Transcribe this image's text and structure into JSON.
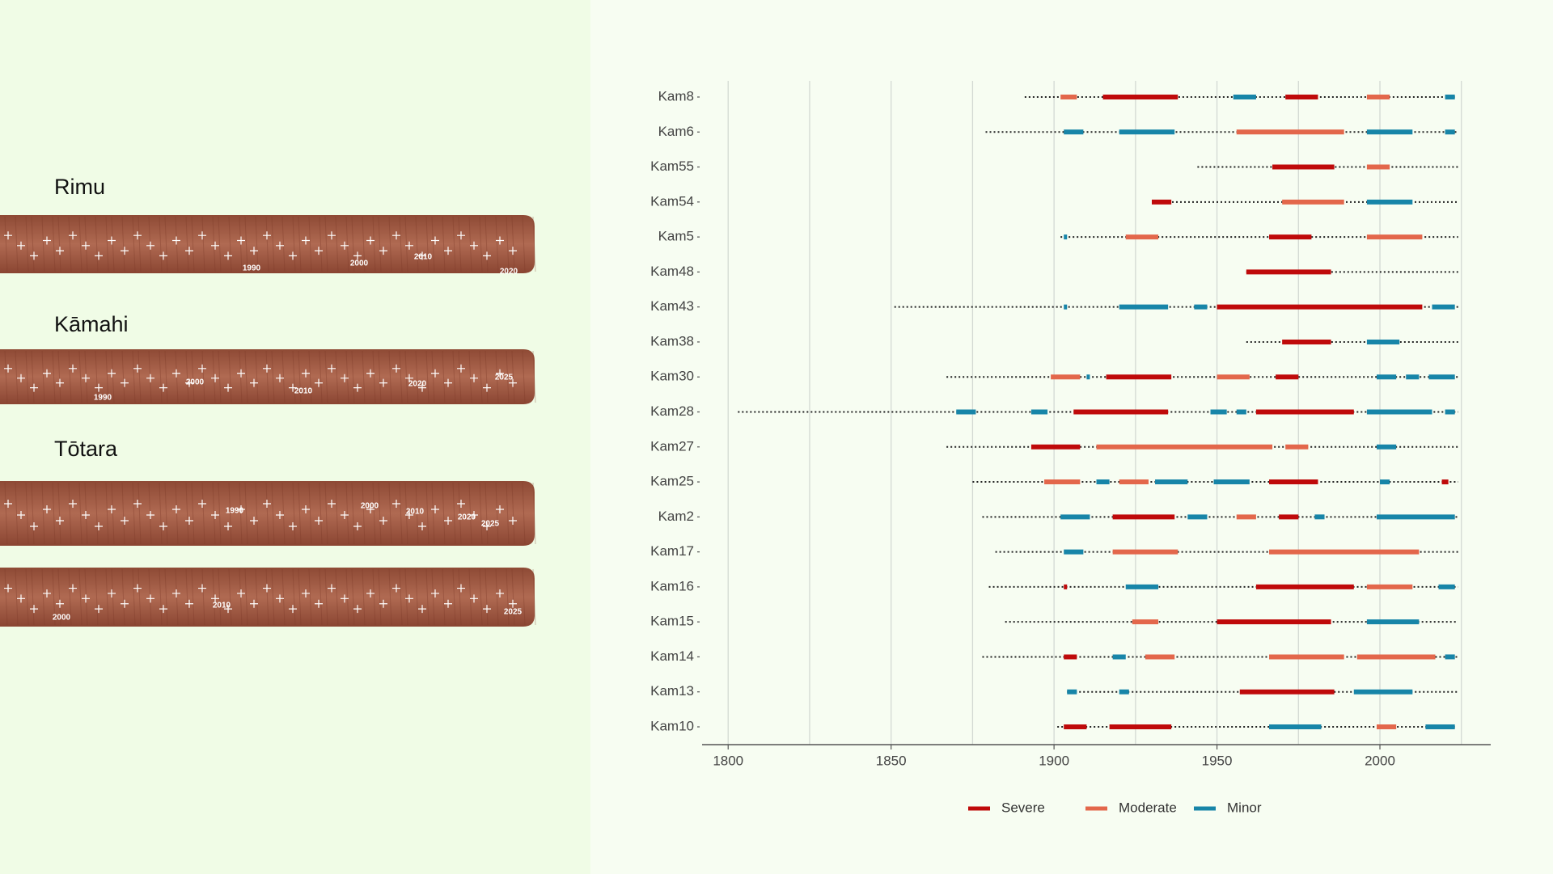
{
  "cores": [
    {
      "title": "Rimu",
      "labels": [
        "1990",
        "2000",
        "2010",
        "2020"
      ]
    },
    {
      "title": "Kāmahi",
      "labels": [
        "1990",
        "2000",
        "2010",
        "2020",
        "2025"
      ]
    },
    {
      "title": "Tōtara",
      "labels": [
        "1990",
        "2000",
        "2010",
        "2020",
        "2025"
      ]
    },
    {
      "labels": [
        "2000",
        "2010",
        "2025"
      ]
    }
  ],
  "chart_data": {
    "type": "timeline",
    "series": [
      {
        "name": "Severe",
        "color": "#bf0a0a"
      },
      {
        "name": "Moderate",
        "color": "#e3674b"
      },
      {
        "name": "Minor",
        "color": "#1785a8"
      }
    ],
    "xlim": [
      1792,
      2034
    ],
    "xticks": [
      1800,
      1850,
      1900,
      1950,
      2000
    ],
    "xgrid": [
      1800,
      1825,
      1850,
      1875,
      1900,
      1925,
      1950,
      1975,
      2000,
      2025
    ],
    "rows": [
      {
        "name": "Kam8",
        "start": 1891,
        "end": 2023,
        "segments": [
          {
            "level": "Moderate",
            "start": 1902,
            "end": 1907
          },
          {
            "level": "Severe",
            "start": 1915,
            "end": 1938
          },
          {
            "level": "Minor",
            "start": 1955,
            "end": 1962
          },
          {
            "level": "Severe",
            "start": 1971,
            "end": 1981
          },
          {
            "level": "Moderate",
            "start": 1996,
            "end": 2003
          },
          {
            "level": "Minor",
            "start": 2020,
            "end": 2023
          }
        ]
      },
      {
        "name": "Kam6",
        "start": 1879,
        "end": 2024,
        "segments": [
          {
            "level": "Minor",
            "start": 1903,
            "end": 1909
          },
          {
            "level": "Minor",
            "start": 1920,
            "end": 1937
          },
          {
            "level": "Moderate",
            "start": 1956,
            "end": 1989
          },
          {
            "level": "Minor",
            "start": 1996,
            "end": 2010
          },
          {
            "level": "Minor",
            "start": 2020,
            "end": 2023
          }
        ]
      },
      {
        "name": "Kam55",
        "start": 1944,
        "end": 2024,
        "segments": [
          {
            "level": "Severe",
            "start": 1967,
            "end": 1986
          },
          {
            "level": "Moderate",
            "start": 1996,
            "end": 2003
          }
        ]
      },
      {
        "name": "Kam54",
        "start": 1930,
        "end": 2024,
        "segments": [
          {
            "level": "Severe",
            "start": 1930,
            "end": 1936
          },
          {
            "level": "Moderate",
            "start": 1970,
            "end": 1989
          },
          {
            "level": "Minor",
            "start": 1996,
            "end": 2010
          }
        ]
      },
      {
        "name": "Kam5",
        "start": 1902,
        "end": 2024,
        "segments": [
          {
            "level": "Minor",
            "start": 1903,
            "end": 1904
          },
          {
            "level": "Moderate",
            "start": 1922,
            "end": 1932
          },
          {
            "level": "Severe",
            "start": 1966,
            "end": 1979
          },
          {
            "level": "Moderate",
            "start": 1996,
            "end": 2013
          }
        ]
      },
      {
        "name": "Kam48",
        "start": 1959,
        "end": 2024,
        "segments": [
          {
            "level": "Severe",
            "start": 1959,
            "end": 1985
          }
        ]
      },
      {
        "name": "Kam43",
        "start": 1851,
        "end": 2024,
        "segments": [
          {
            "level": "Minor",
            "start": 1903,
            "end": 1904
          },
          {
            "level": "Minor",
            "start": 1920,
            "end": 1935
          },
          {
            "level": "Minor",
            "start": 1943,
            "end": 1947
          },
          {
            "level": "Severe",
            "start": 1950,
            "end": 2013
          },
          {
            "level": "Minor",
            "start": 2016,
            "end": 2023
          }
        ]
      },
      {
        "name": "Kam38",
        "start": 1959,
        "end": 2024,
        "segments": [
          {
            "level": "Severe",
            "start": 1970,
            "end": 1985
          },
          {
            "level": "Minor",
            "start": 1996,
            "end": 2006
          }
        ]
      },
      {
        "name": "Kam30",
        "start": 1867,
        "end": 2024,
        "segments": [
          {
            "level": "Moderate",
            "start": 1899,
            "end": 1908
          },
          {
            "level": "Minor",
            "start": 1910,
            "end": 1911
          },
          {
            "level": "Severe",
            "start": 1916,
            "end": 1936
          },
          {
            "level": "Moderate",
            "start": 1950,
            "end": 1960
          },
          {
            "level": "Severe",
            "start": 1968,
            "end": 1975
          },
          {
            "level": "Minor",
            "start": 1999,
            "end": 2005
          },
          {
            "level": "Minor",
            "start": 2008,
            "end": 2012
          },
          {
            "level": "Minor",
            "start": 2015,
            "end": 2023
          }
        ]
      },
      {
        "name": "Kam28",
        "start": 1803,
        "end": 2024,
        "segments": [
          {
            "level": "Minor",
            "start": 1870,
            "end": 1876
          },
          {
            "level": "Minor",
            "start": 1893,
            "end": 1898
          },
          {
            "level": "Severe",
            "start": 1906,
            "end": 1935
          },
          {
            "level": "Minor",
            "start": 1948,
            "end": 1953
          },
          {
            "level": "Minor",
            "start": 1956,
            "end": 1959
          },
          {
            "level": "Severe",
            "start": 1962,
            "end": 1992
          },
          {
            "level": "Minor",
            "start": 1996,
            "end": 2016
          },
          {
            "level": "Minor",
            "start": 2020,
            "end": 2023
          }
        ]
      },
      {
        "name": "Kam27",
        "start": 1867,
        "end": 2024,
        "segments": [
          {
            "level": "Severe",
            "start": 1893,
            "end": 1908
          },
          {
            "level": "Moderate",
            "start": 1913,
            "end": 1967
          },
          {
            "level": "Moderate",
            "start": 1971,
            "end": 1978
          },
          {
            "level": "Minor",
            "start": 1999,
            "end": 2005
          }
        ]
      },
      {
        "name": "Kam25",
        "start": 1875,
        "end": 2024,
        "segments": [
          {
            "level": "Moderate",
            "start": 1897,
            "end": 1908
          },
          {
            "level": "Minor",
            "start": 1913,
            "end": 1917
          },
          {
            "level": "Moderate",
            "start": 1920,
            "end": 1929
          },
          {
            "level": "Minor",
            "start": 1931,
            "end": 1941
          },
          {
            "level": "Minor",
            "start": 1949,
            "end": 1960
          },
          {
            "level": "Severe",
            "start": 1966,
            "end": 1981
          },
          {
            "level": "Minor",
            "start": 2000,
            "end": 2003
          },
          {
            "level": "Severe",
            "start": 2019,
            "end": 2021
          }
        ]
      },
      {
        "name": "Kam2",
        "start": 1878,
        "end": 2024,
        "segments": [
          {
            "level": "Minor",
            "start": 1902,
            "end": 1911
          },
          {
            "level": "Severe",
            "start": 1918,
            "end": 1937
          },
          {
            "level": "Minor",
            "start": 1941,
            "end": 1947
          },
          {
            "level": "Moderate",
            "start": 1956,
            "end": 1962
          },
          {
            "level": "Severe",
            "start": 1969,
            "end": 1975
          },
          {
            "level": "Minor",
            "start": 1980,
            "end": 1983
          },
          {
            "level": "Minor",
            "start": 1999,
            "end": 2023
          }
        ]
      },
      {
        "name": "Kam17",
        "start": 1882,
        "end": 2024,
        "segments": [
          {
            "level": "Minor",
            "start": 1903,
            "end": 1909
          },
          {
            "level": "Moderate",
            "start": 1918,
            "end": 1938
          },
          {
            "level": "Moderate",
            "start": 1966,
            "end": 2012
          }
        ]
      },
      {
        "name": "Kam16",
        "start": 1880,
        "end": 2024,
        "segments": [
          {
            "level": "Severe",
            "start": 1903,
            "end": 1904
          },
          {
            "level": "Minor",
            "start": 1922,
            "end": 1932
          },
          {
            "level": "Severe",
            "start": 1962,
            "end": 1992
          },
          {
            "level": "Moderate",
            "start": 1996,
            "end": 2010
          },
          {
            "level": "Minor",
            "start": 2018,
            "end": 2023
          }
        ]
      },
      {
        "name": "Kam15",
        "start": 1885,
        "end": 2024,
        "segments": [
          {
            "level": "Moderate",
            "start": 1924,
            "end": 1932
          },
          {
            "level": "Severe",
            "start": 1950,
            "end": 1985
          },
          {
            "level": "Minor",
            "start": 1996,
            "end": 2012
          }
        ]
      },
      {
        "name": "Kam14",
        "start": 1878,
        "end": 2024,
        "segments": [
          {
            "level": "Severe",
            "start": 1903,
            "end": 1907
          },
          {
            "level": "Minor",
            "start": 1918,
            "end": 1922
          },
          {
            "level": "Moderate",
            "start": 1928,
            "end": 1937
          },
          {
            "level": "Moderate",
            "start": 1966,
            "end": 1989
          },
          {
            "level": "Moderate",
            "start": 1993,
            "end": 2017
          },
          {
            "level": "Minor",
            "start": 2020,
            "end": 2023
          }
        ]
      },
      {
        "name": "Kam13",
        "start": 1904,
        "end": 2024,
        "segments": [
          {
            "level": "Minor",
            "start": 1904,
            "end": 1907
          },
          {
            "level": "Minor",
            "start": 1920,
            "end": 1923
          },
          {
            "level": "Severe",
            "start": 1957,
            "end": 1986
          },
          {
            "level": "Minor",
            "start": 1992,
            "end": 2010
          }
        ]
      },
      {
        "name": "Kam10",
        "start": 1901,
        "end": 2023,
        "segments": [
          {
            "level": "Severe",
            "start": 1903,
            "end": 1910
          },
          {
            "level": "Severe",
            "start": 1917,
            "end": 1936
          },
          {
            "level": "Minor",
            "start": 1966,
            "end": 1982
          },
          {
            "level": "Moderate",
            "start": 1999,
            "end": 2005
          },
          {
            "level": "Minor",
            "start": 2014,
            "end": 2023
          }
        ]
      }
    ]
  }
}
